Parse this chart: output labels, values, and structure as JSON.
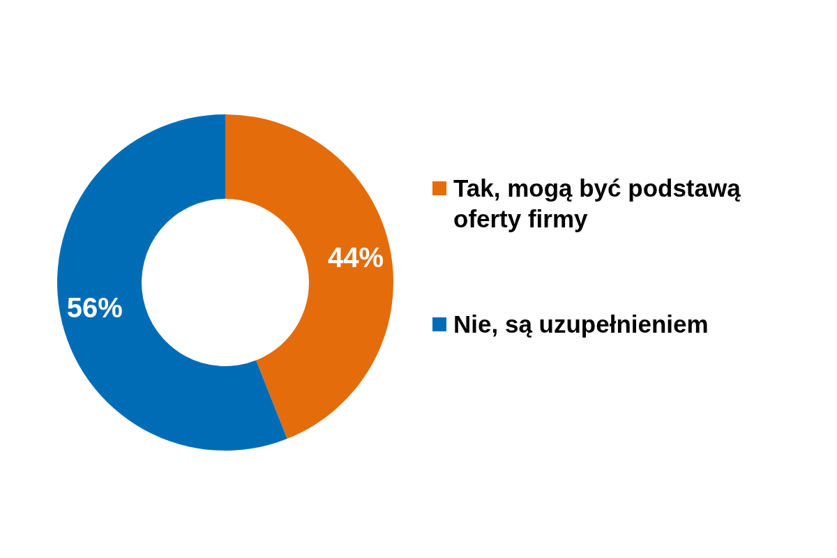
{
  "chart_data": {
    "type": "donut",
    "categories": [
      "Tak, mogą być podstawą oferty firmy",
      "Nie, są uzupełnieniem"
    ],
    "values": [
      44,
      56
    ],
    "colors": [
      "#e46c0a",
      "#006cb6"
    ],
    "value_labels": [
      "44%",
      "56%"
    ],
    "legend": "right"
  }
}
